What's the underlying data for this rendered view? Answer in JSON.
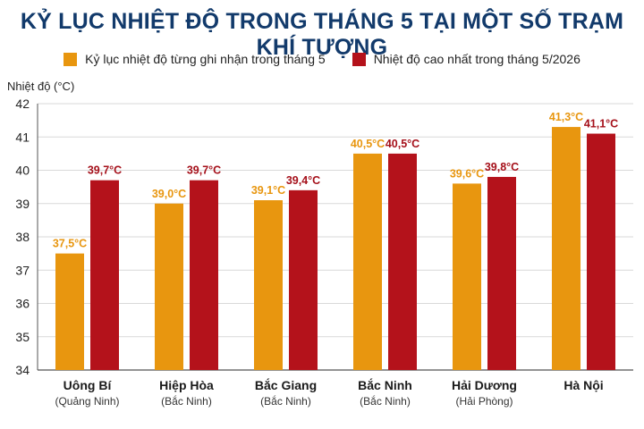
{
  "chart_data": {
    "type": "bar",
    "title": "KỶ LỤC NHIỆT ĐỘ TRONG THÁNG 5 TẠI MỘT SỐ TRẠM KHÍ TƯỢNG",
    "ylabel": "Nhiệt độ (°C)",
    "xlabel": "",
    "ylim": [
      34,
      42
    ],
    "yticks": [
      34,
      35,
      36,
      37,
      38,
      39,
      40,
      41,
      42
    ],
    "grid": true,
    "legend_position": "top",
    "categories": [
      {
        "name": "Uông Bí",
        "sub": "(Quảng Ninh)"
      },
      {
        "name": "Hiệp Hòa",
        "sub": "(Bắc Ninh)"
      },
      {
        "name": "Bắc Giang",
        "sub": "(Bắc Ninh)"
      },
      {
        "name": "Bắc Ninh",
        "sub": "(Bắc Ninh)"
      },
      {
        "name": "Hải Dương",
        "sub": "(Hải Phòng)"
      },
      {
        "name": "Hà Nội",
        "sub": ""
      }
    ],
    "series": [
      {
        "name": "Kỷ lục nhiệt độ từng ghi nhận trong tháng 5",
        "color": "#e8960f",
        "values": [
          37.5,
          39.0,
          39.1,
          40.5,
          39.6,
          41.3
        ],
        "labels": [
          "37,5°C",
          "39,0°C",
          "39,1°C",
          "40,5°C",
          "39,6°C",
          "41,3°C"
        ]
      },
      {
        "name": "Nhiệt độ cao nhất trong tháng 5/2026",
        "color": "#b4121b",
        "values": [
          39.7,
          39.7,
          39.4,
          40.5,
          39.8,
          41.1
        ],
        "labels": [
          "39,7°C",
          "39,7°C",
          "39,4°C",
          "40,5°C",
          "39,8°C",
          "41,1°C"
        ]
      }
    ]
  }
}
